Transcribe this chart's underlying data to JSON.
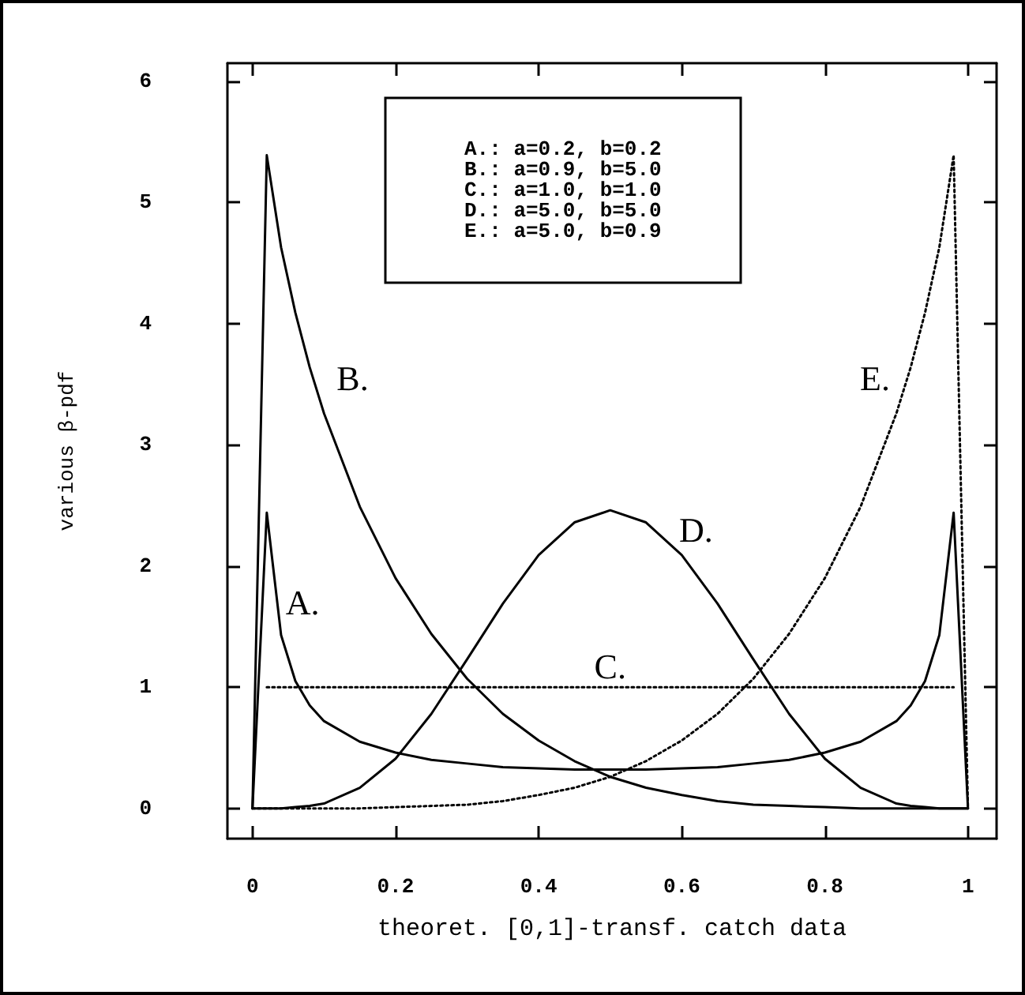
{
  "chart_data": {
    "type": "line",
    "xlabel": "theoret. [0,1]-transf. catch data",
    "ylabel": "various β-pdf",
    "x": [
      0,
      0.02,
      0.04,
      0.06,
      0.08,
      0.1,
      0.15,
      0.2,
      0.25,
      0.3,
      0.35,
      0.4,
      0.45,
      0.5,
      0.55,
      0.6,
      0.65,
      0.7,
      0.75,
      0.8,
      0.85,
      0.9,
      0.92,
      0.94,
      0.96,
      0.98,
      1
    ],
    "series": [
      {
        "name": "A.",
        "color": "#000000",
        "line_style": "solid",
        "values": [
          0,
          2.44,
          1.43,
          1.05,
          0.85,
          0.72,
          0.55,
          0.46,
          0.4,
          0.37,
          0.34,
          0.33,
          0.32,
          0.32,
          0.32,
          0.33,
          0.34,
          0.37,
          0.4,
          0.46,
          0.55,
          0.72,
          0.85,
          1.05,
          1.43,
          2.44,
          0
        ]
      },
      {
        "name": "B.",
        "color": "#000000",
        "line_style": "solid",
        "values": [
          0,
          5.39,
          4.63,
          4.09,
          3.64,
          3.26,
          2.49,
          1.9,
          1.44,
          1.07,
          0.78,
          0.56,
          0.39,
          0.26,
          0.17,
          0.11,
          0.06,
          0.03,
          0.02,
          0.01,
          0,
          0,
          0,
          0,
          0,
          0,
          0
        ]
      },
      {
        "name": "C.",
        "color": "#000000",
        "line_style": "dotted",
        "x": [
          0.02,
          0.98
        ],
        "values": [
          1,
          1
        ]
      },
      {
        "name": "D.",
        "color": "#000000",
        "line_style": "solid",
        "values": [
          0,
          0,
          0,
          0.01,
          0.02,
          0.04,
          0.17,
          0.41,
          0.78,
          1.23,
          1.69,
          2.09,
          2.36,
          2.46,
          2.36,
          2.09,
          1.69,
          1.23,
          0.78,
          0.41,
          0.17,
          0.04,
          0.02,
          0.01,
          0,
          0,
          0
        ]
      },
      {
        "name": "E.",
        "color": "#000000",
        "line_style": "dotted",
        "values": [
          0,
          0,
          0,
          0,
          0,
          0,
          0,
          0.01,
          0.02,
          0.03,
          0.06,
          0.11,
          0.17,
          0.26,
          0.39,
          0.56,
          0.78,
          1.07,
          1.44,
          1.9,
          2.49,
          3.26,
          3.64,
          4.09,
          4.63,
          5.39,
          0
        ]
      }
    ],
    "annotations": [
      "A.: a=0.2, b=0.2",
      "B.: a=0.9, b=5.0",
      "C.: a=1.0, b=1.0",
      "D.: a=5.0, b=5.0",
      "E.: a=5.0, b=0.9"
    ],
    "xlim": [
      -0.035,
      1.04
    ],
    "xticks": [
      0,
      0.2,
      0.4,
      0.6,
      0.8,
      1
    ],
    "ylim": [
      -0.25,
      6.15
    ],
    "yticks": [
      0,
      1,
      2,
      3,
      4,
      5,
      6
    ],
    "grid": false,
    "marker": "none"
  }
}
